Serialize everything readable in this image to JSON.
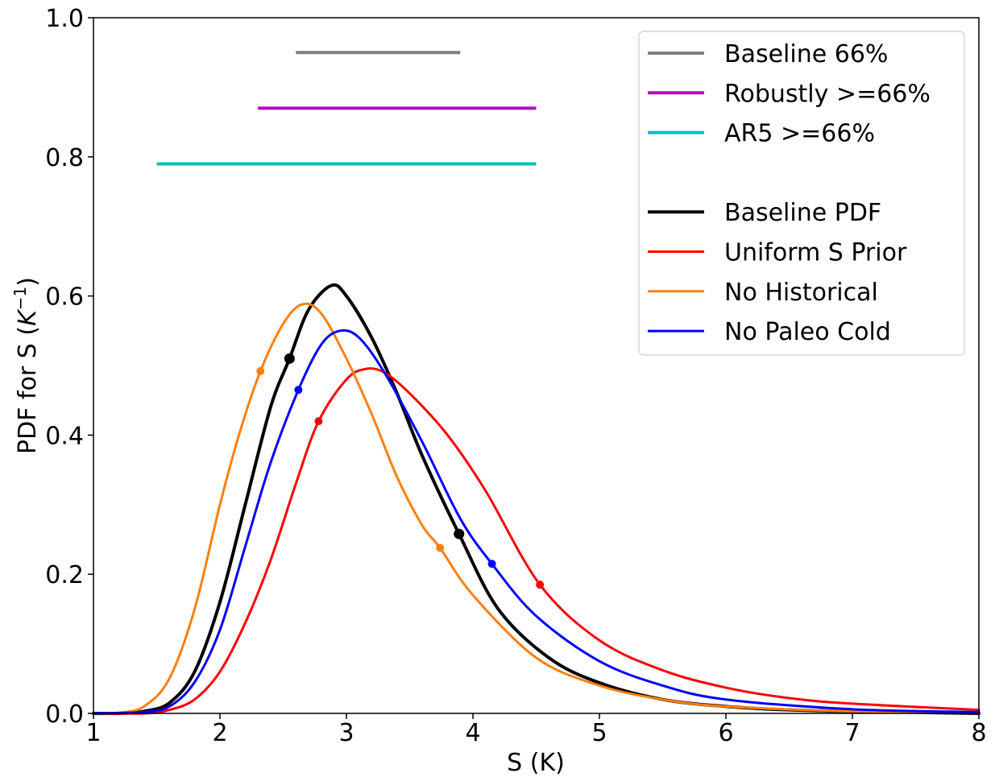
{
  "chart_data": {
    "type": "line",
    "xlabel": "S (K)",
    "ylabel": "PDF for S (K⁻¹)",
    "ylabel_parts": {
      "main": "PDF for S (",
      "base": "K",
      "sup": "−1",
      "close": ")"
    },
    "xlim": [
      1,
      8
    ],
    "ylim": [
      0,
      1.0
    ],
    "x_ticks": [
      1,
      2,
      3,
      4,
      5,
      6,
      7,
      8
    ],
    "x_tick_labels": [
      "1",
      "2",
      "3",
      "4",
      "5",
      "6",
      "7",
      "8"
    ],
    "y_ticks": [
      0,
      0.2,
      0.4,
      0.6,
      0.8,
      1.0
    ],
    "y_tick_labels": [
      "0.0",
      "0.2",
      "0.4",
      "0.6",
      "0.8",
      "1.0"
    ],
    "grid": false,
    "legend_position": "top-right",
    "ranges": [
      {
        "name": "Baseline 66%",
        "color": "#808080",
        "x": [
          2.6,
          3.9
        ],
        "y": 0.95
      },
      {
        "name": "Robustly >=66%",
        "color": "#bf00bf",
        "x": [
          2.3,
          4.5
        ],
        "y": 0.87
      },
      {
        "name": "AR5 >=66%",
        "color": "#00bfbf",
        "x": [
          1.5,
          4.5
        ],
        "y": 0.79
      }
    ],
    "series": [
      {
        "name": "Baseline PDF",
        "color": "#000000",
        "width": "thick",
        "x": [
          1.0,
          1.2,
          1.4,
          1.6,
          1.8,
          2.0,
          2.2,
          2.4,
          2.55,
          2.7,
          2.88,
          3.0,
          3.2,
          3.4,
          3.6,
          3.89,
          4.2,
          4.6,
          5.0,
          5.5,
          6.0,
          6.5,
          7.0,
          8.0
        ],
        "y": [
          0.0,
          0.0,
          0.003,
          0.015,
          0.06,
          0.16,
          0.3,
          0.44,
          0.51,
          0.58,
          0.615,
          0.6,
          0.54,
          0.46,
          0.37,
          0.258,
          0.15,
          0.08,
          0.044,
          0.02,
          0.01,
          0.005,
          0.003,
          0.0
        ]
      },
      {
        "name": "Uniform S Prior",
        "color": "#ff0000",
        "width": "normal",
        "x": [
          1.0,
          1.4,
          1.6,
          1.8,
          2.0,
          2.2,
          2.4,
          2.6,
          2.78,
          3.0,
          3.15,
          3.3,
          3.5,
          3.8,
          4.1,
          4.53,
          5.0,
          5.5,
          6.0,
          6.5,
          7.0,
          8.0
        ],
        "y": [
          0.0,
          0.0,
          0.005,
          0.02,
          0.06,
          0.13,
          0.22,
          0.33,
          0.42,
          0.48,
          0.495,
          0.49,
          0.46,
          0.4,
          0.32,
          0.185,
          0.105,
          0.062,
          0.037,
          0.022,
          0.014,
          0.005
        ]
      },
      {
        "name": "No Historical",
        "color": "#ff7f0e",
        "width": "normal",
        "x": [
          1.0,
          1.2,
          1.4,
          1.6,
          1.8,
          2.0,
          2.15,
          2.32,
          2.5,
          2.65,
          2.8,
          3.0,
          3.2,
          3.4,
          3.6,
          3.74,
          4.0,
          4.5,
          5.0,
          5.5,
          6.0,
          7.0,
          8.0
        ],
        "y": [
          0.0,
          0.001,
          0.01,
          0.05,
          0.15,
          0.3,
          0.4,
          0.492,
          0.56,
          0.588,
          0.575,
          0.51,
          0.43,
          0.34,
          0.27,
          0.238,
          0.17,
          0.08,
          0.04,
          0.02,
          0.01,
          0.003,
          0.001
        ]
      },
      {
        "name": "No Paleo Cold",
        "color": "#0000ff",
        "width": "normal",
        "x": [
          1.0,
          1.4,
          1.6,
          1.8,
          2.0,
          2.2,
          2.4,
          2.62,
          2.8,
          2.95,
          3.1,
          3.3,
          3.6,
          3.9,
          4.15,
          4.5,
          5.0,
          5.5,
          6.0,
          7.0,
          8.0
        ],
        "y": [
          0.0,
          0.002,
          0.01,
          0.045,
          0.12,
          0.24,
          0.36,
          0.465,
          0.53,
          0.55,
          0.54,
          0.49,
          0.39,
          0.28,
          0.215,
          0.14,
          0.075,
          0.04,
          0.02,
          0.006,
          0.002
        ]
      }
    ],
    "markers": [
      {
        "series": "Baseline PDF",
        "color": "#000000",
        "size": "large",
        "points": [
          [
            2.55,
            0.51
          ],
          [
            3.89,
            0.258
          ]
        ]
      },
      {
        "series": "Uniform S Prior",
        "color": "#ff0000",
        "size": "small",
        "points": [
          [
            2.78,
            0.42
          ],
          [
            4.53,
            0.185
          ]
        ]
      },
      {
        "series": "No Historical",
        "color": "#ff7f0e",
        "size": "small",
        "points": [
          [
            2.32,
            0.492
          ],
          [
            3.74,
            0.238
          ]
        ]
      },
      {
        "series": "No Paleo Cold",
        "color": "#0000ff",
        "size": "small",
        "points": [
          [
            2.62,
            0.465
          ],
          [
            4.15,
            0.215
          ]
        ]
      }
    ]
  }
}
